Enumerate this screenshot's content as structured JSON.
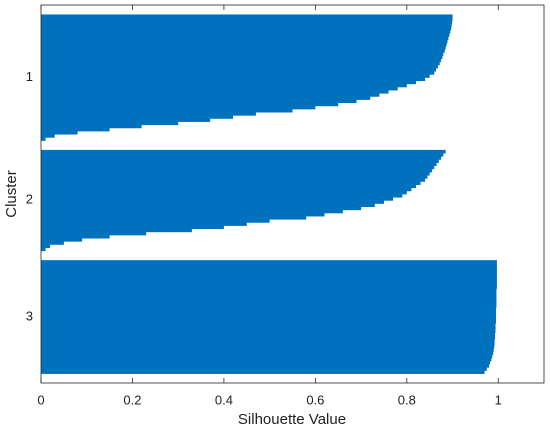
{
  "chart_data": {
    "type": "silhouette",
    "xlabel": "Silhouette Value",
    "ylabel": "Cluster",
    "color": "#0072bd",
    "xlim": [
      0,
      1.1
    ],
    "xticks": [
      0,
      0.2,
      0.4,
      0.6,
      0.8,
      1
    ],
    "clusters": [
      {
        "label": "1",
        "values": [
          0.9,
          0.9,
          0.899,
          0.898,
          0.897,
          0.895,
          0.893,
          0.891,
          0.889,
          0.887,
          0.885,
          0.883,
          0.88,
          0.878,
          0.875,
          0.872,
          0.868,
          0.864,
          0.86,
          0.85,
          0.84,
          0.82,
          0.8,
          0.78,
          0.76,
          0.74,
          0.72,
          0.69,
          0.65,
          0.6,
          0.55,
          0.47,
          0.42,
          0.37,
          0.3,
          0.22,
          0.15,
          0.08,
          0.03,
          0.01
        ]
      },
      {
        "label": "2",
        "values": [
          0.885,
          0.88,
          0.875,
          0.87,
          0.865,
          0.86,
          0.855,
          0.85,
          0.845,
          0.84,
          0.83,
          0.82,
          0.81,
          0.8,
          0.79,
          0.77,
          0.75,
          0.73,
          0.7,
          0.66,
          0.62,
          0.58,
          0.5,
          0.45,
          0.4,
          0.33,
          0.23,
          0.15,
          0.09,
          0.05,
          0.02,
          0.01
        ]
      },
      {
        "label": "3",
        "values": [
          0.997,
          0.997,
          0.997,
          0.997,
          0.997,
          0.997,
          0.997,
          0.997,
          0.997,
          0.996,
          0.996,
          0.996,
          0.996,
          0.996,
          0.996,
          0.995,
          0.995,
          0.995,
          0.995,
          0.995,
          0.994,
          0.994,
          0.994,
          0.993,
          0.993,
          0.992,
          0.992,
          0.991,
          0.99,
          0.989,
          0.987,
          0.985,
          0.982,
          0.98,
          0.975,
          0.97
        ]
      }
    ]
  }
}
